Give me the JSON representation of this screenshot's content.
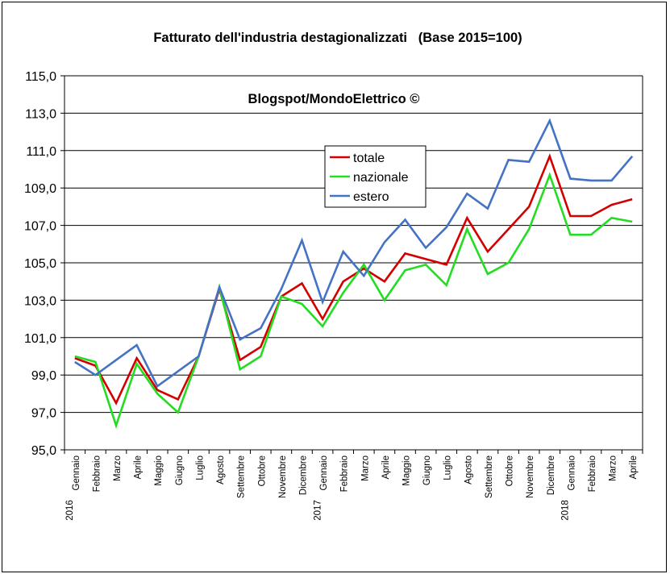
{
  "chart_data": {
    "type": "line",
    "title": "Fatturato dell'industria destagionalizzati   (Base 2015=100)",
    "watermark": "Blogspot/MondoElettrico ©",
    "xlabel": "",
    "ylabel": "",
    "ylim": [
      95,
      115
    ],
    "y_ticks": [
      "95,0",
      "97,0",
      "99,0",
      "101,0",
      "103,0",
      "105,0",
      "107,0",
      "109,0",
      "111,0",
      "113,0",
      "115,0"
    ],
    "grid": "horizontal",
    "legend_position": "center-top",
    "categories": [
      "Gennaio",
      "Febbraio",
      "Marzo",
      "Aprile",
      "Maggio",
      "Giugno",
      "Luglio",
      "Agosto",
      "Settembre",
      "Ottobre",
      "Novembre",
      "Dicembre",
      "Gennaio",
      "Febbraio",
      "Marzo",
      "Aprile",
      "Maggio",
      "Giugno",
      "Luglio",
      "Agosto",
      "Settembre",
      "Ottobre",
      "Novembre",
      "Dicembre",
      "Gennaio",
      "Febbraio",
      "Marzo",
      "Aprile"
    ],
    "year_labels": [
      {
        "label": "2016",
        "index": 0
      },
      {
        "label": "2017",
        "index": 12
      },
      {
        "label": "2018",
        "index": 24
      }
    ],
    "series": [
      {
        "name": "totale",
        "color": "#d40000",
        "values": [
          99.9,
          99.5,
          97.5,
          99.9,
          98.2,
          97.7,
          100.0,
          103.6,
          99.8,
          100.5,
          103.2,
          103.9,
          102.0,
          104.0,
          104.7,
          104.0,
          105.5,
          105.2,
          104.9,
          107.4,
          105.6,
          106.8,
          108.0,
          110.7,
          107.5,
          107.5,
          108.1,
          108.4
        ]
      },
      {
        "name": "nazionale",
        "color": "#22dd22",
        "values": [
          100.0,
          99.7,
          96.3,
          99.6,
          98.0,
          97.0,
          100.0,
          103.7,
          99.3,
          100.0,
          103.2,
          102.8,
          101.6,
          103.4,
          104.9,
          103.0,
          104.6,
          104.9,
          103.8,
          106.8,
          104.4,
          105.0,
          106.8,
          109.7,
          106.5,
          106.5,
          107.4,
          107.2
        ]
      },
      {
        "name": "estero",
        "color": "#4472c4",
        "values": [
          99.7,
          99.0,
          99.8,
          100.6,
          98.4,
          99.2,
          100.0,
          103.7,
          100.9,
          101.5,
          103.6,
          106.2,
          102.9,
          105.6,
          104.3,
          106.1,
          107.3,
          105.8,
          106.9,
          108.7,
          107.9,
          110.5,
          110.4,
          112.6,
          109.5,
          109.4,
          109.4,
          110.7
        ]
      }
    ]
  }
}
